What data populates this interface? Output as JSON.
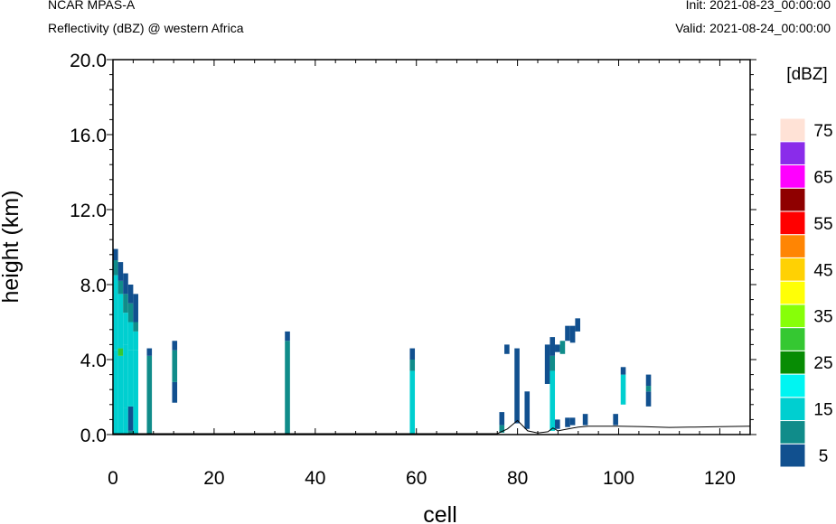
{
  "header": {
    "model": "NCAR MPAS-A",
    "subtitle": "Reflectivity (dBZ) @ western Africa",
    "init": "Init: 2021-08-23_00:00:00",
    "valid": "Valid: 2021-08-24_00:00:00"
  },
  "chart_data": {
    "type": "heatmap",
    "title": "Reflectivity (dBZ) @ western Africa",
    "xlabel": "cell",
    "ylabel": "height (km)",
    "xlim": [
      0,
      126
    ],
    "ylim": [
      0,
      20
    ],
    "x_ticks": [
      "0",
      "20",
      "40",
      "60",
      "80",
      "100",
      "120"
    ],
    "y_ticks": [
      "0.0",
      "4.0",
      "8.0",
      "12.0",
      "16.0",
      "20.0"
    ],
    "colorbar": {
      "unit": "[dBZ]",
      "levels": [
        5,
        10,
        15,
        20,
        25,
        30,
        35,
        40,
        45,
        50,
        55,
        60,
        65,
        70,
        75
      ],
      "labels": [
        "5",
        "15",
        "25",
        "35",
        "45",
        "55",
        "65",
        "75"
      ],
      "colors": [
        "#11508f",
        "#108c8a",
        "#00cfd0",
        "#00f5f2",
        "#078c04",
        "#35c832",
        "#87ff08",
        "#ffff06",
        "#ffd103",
        "#ff8503",
        "#ff0000",
        "#8f0000",
        "#ff00ff",
        "#8a2cea",
        "#ffe2d6"
      ]
    },
    "terrain": [
      [
        0,
        0.05
      ],
      [
        76,
        0.05
      ],
      [
        78,
        0.3
      ],
      [
        80,
        0.75
      ],
      [
        82,
        0.2
      ],
      [
        84,
        0.08
      ],
      [
        86,
        0.15
      ],
      [
        87,
        0.35
      ],
      [
        88,
        0.2
      ],
      [
        90,
        0.3
      ],
      [
        92,
        0.4
      ],
      [
        94,
        0.45
      ],
      [
        100,
        0.45
      ],
      [
        105,
        0.42
      ],
      [
        110,
        0.38
      ],
      [
        115,
        0.4
      ],
      [
        120,
        0.42
      ],
      [
        126,
        0.45
      ]
    ],
    "cells": [
      {
        "x": 0.5,
        "segs": [
          [
            0.05,
            4.5,
            15
          ],
          [
            4.5,
            8.5,
            15
          ],
          [
            8.5,
            9.3,
            10
          ],
          [
            9.3,
            9.9,
            5
          ]
        ]
      },
      {
        "x": 1.5,
        "segs": [
          [
            0.05,
            4.2,
            15
          ],
          [
            4.2,
            4.6,
            30
          ],
          [
            4.6,
            7.5,
            15
          ],
          [
            7.5,
            8.2,
            10
          ],
          [
            8.2,
            9.2,
            5
          ]
        ]
      },
      {
        "x": 2.5,
        "segs": [
          [
            0.05,
            1.4,
            15
          ],
          [
            1.4,
            4.8,
            15
          ],
          [
            4.8,
            6.5,
            15
          ],
          [
            6.5,
            7.5,
            10
          ],
          [
            7.5,
            8.6,
            5
          ]
        ]
      },
      {
        "x": 3.5,
        "segs": [
          [
            0.05,
            0.2,
            10
          ],
          [
            0.2,
            1.5,
            5
          ],
          [
            1.5,
            4.5,
            15
          ],
          [
            4.5,
            6.0,
            15
          ],
          [
            6.0,
            7.0,
            10
          ],
          [
            7.0,
            8.0,
            5
          ]
        ]
      },
      {
        "x": 4.5,
        "segs": [
          [
            0.05,
            4.5,
            15
          ],
          [
            4.5,
            5.5,
            15
          ],
          [
            5.5,
            6.0,
            10
          ],
          [
            6.0,
            7.5,
            5
          ]
        ]
      },
      {
        "x": 7.2,
        "segs": [
          [
            0.05,
            4.2,
            10
          ],
          [
            4.2,
            4.6,
            5
          ]
        ]
      },
      {
        "x": 12.2,
        "segs": [
          [
            1.7,
            2.8,
            5
          ],
          [
            2.8,
            4.5,
            10
          ],
          [
            4.5,
            5.0,
            5
          ]
        ]
      },
      {
        "x": 34.5,
        "segs": [
          [
            0.05,
            5.0,
            10
          ],
          [
            5.0,
            5.5,
            5
          ]
        ]
      },
      {
        "x": 59.2,
        "segs": [
          [
            0.05,
            3.4,
            15
          ],
          [
            3.4,
            4.0,
            10
          ],
          [
            4.0,
            4.6,
            5
          ]
        ]
      },
      {
        "x": 76.9,
        "segs": [
          [
            0.1,
            0.5,
            10
          ],
          [
            0.5,
            1.2,
            5
          ]
        ]
      },
      {
        "x": 77.9,
        "segs": [
          [
            4.3,
            4.8,
            5
          ]
        ]
      },
      {
        "x": 79.9,
        "segs": [
          [
            0.6,
            4.6,
            5
          ]
        ]
      },
      {
        "x": 81.9,
        "segs": [
          [
            0.3,
            2.3,
            5
          ]
        ]
      },
      {
        "x": 85.9,
        "segs": [
          [
            2.7,
            4.8,
            5
          ]
        ]
      },
      {
        "x": 86.9,
        "segs": [
          [
            0.2,
            3.4,
            15
          ],
          [
            3.4,
            4.2,
            10
          ],
          [
            4.2,
            5.2,
            5
          ]
        ]
      },
      {
        "x": 87.9,
        "segs": [
          [
            0.3,
            0.8,
            5
          ],
          [
            4.4,
            4.8,
            5
          ]
        ]
      },
      {
        "x": 88.9,
        "segs": [
          [
            4.3,
            5.0,
            10
          ]
        ]
      },
      {
        "x": 89.9,
        "segs": [
          [
            0.4,
            0.9,
            5
          ],
          [
            5.0,
            5.8,
            5
          ]
        ]
      },
      {
        "x": 90.9,
        "segs": [
          [
            0.5,
            0.9,
            5
          ],
          [
            4.9,
            5.8,
            5
          ]
        ]
      },
      {
        "x": 91.9,
        "segs": [
          [
            5.5,
            6.2,
            5
          ]
        ]
      },
      {
        "x": 93.4,
        "segs": [
          [
            0.5,
            1.1,
            5
          ]
        ]
      },
      {
        "x": 99.4,
        "segs": [
          [
            0.5,
            1.1,
            5
          ]
        ]
      },
      {
        "x": 100.9,
        "segs": [
          [
            1.6,
            3.2,
            15
          ],
          [
            3.2,
            3.6,
            5
          ]
        ]
      },
      {
        "x": 105.9,
        "segs": [
          [
            1.5,
            2.3,
            5
          ],
          [
            2.3,
            2.6,
            10
          ],
          [
            2.6,
            3.2,
            5
          ]
        ]
      }
    ]
  }
}
